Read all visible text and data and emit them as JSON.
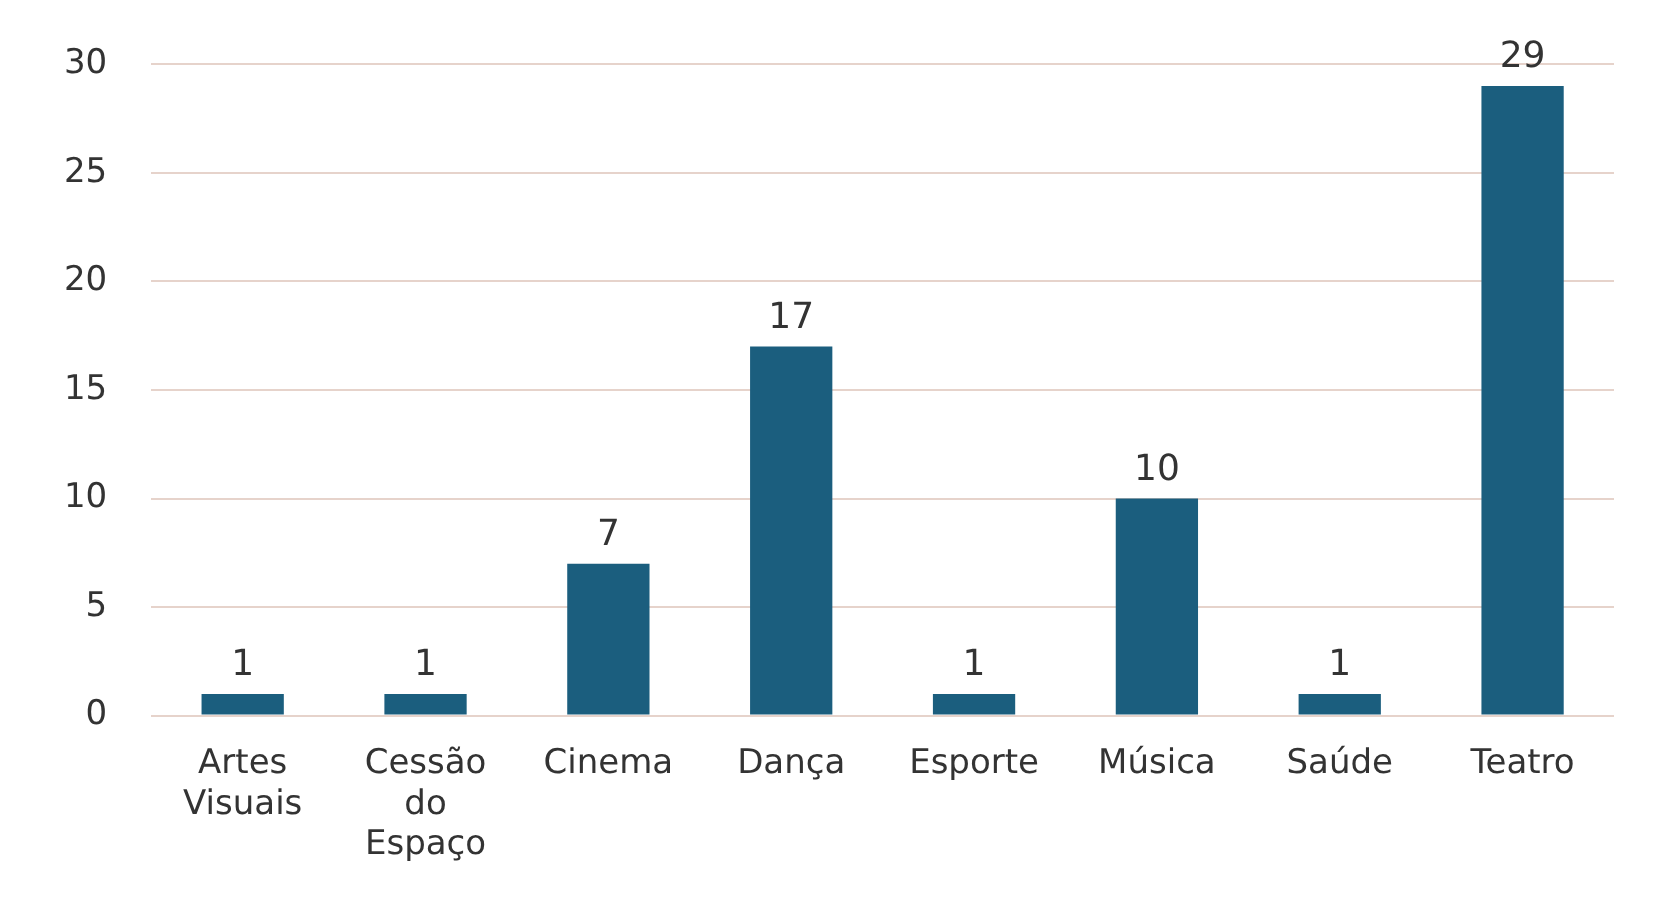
{
  "chart_data": {
    "type": "bar",
    "categories": [
      "Artes Visuais",
      "Cessão do Espaço",
      "Cinema",
      "Dança",
      "Esporte",
      "Música",
      "Saúde",
      "Teatro"
    ],
    "values": [
      1,
      1,
      7,
      17,
      1,
      10,
      1,
      29
    ],
    "color": "#1b5e7e",
    "ylim": [
      0,
      30
    ],
    "yticks": [
      0,
      5,
      10,
      15,
      20,
      25,
      30
    ],
    "grid": "y",
    "legend": false,
    "data_labels": true
  }
}
